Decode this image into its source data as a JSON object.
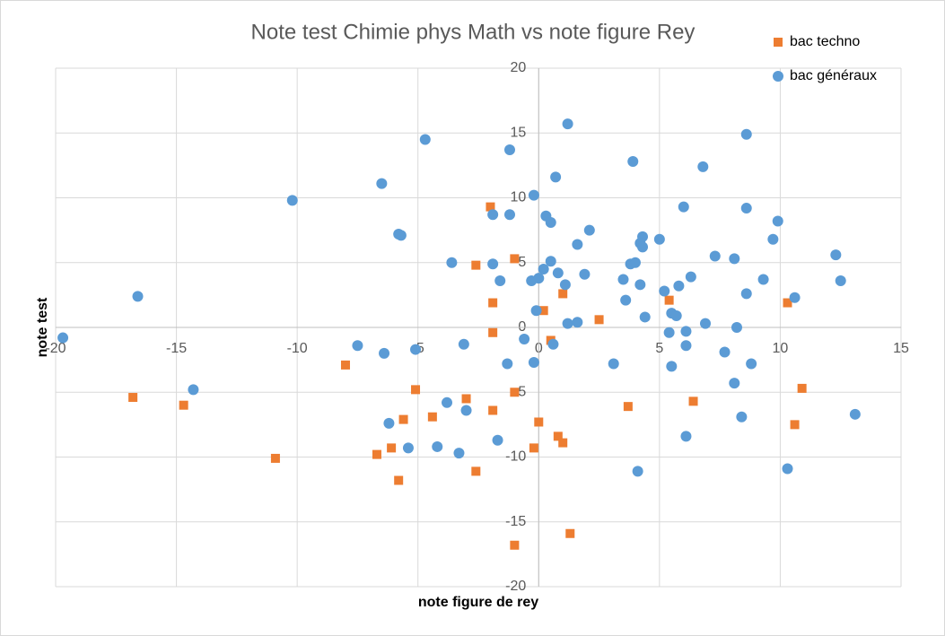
{
  "chart_data": {
    "type": "scatter",
    "title": "Note test Chimie phys Math vs note figure Rey",
    "x_label": "note figure de rey",
    "y_label": "note test",
    "xlim": [
      -20,
      15
    ],
    "xticks": [
      -20,
      -15,
      -10,
      -5,
      0,
      5,
      10,
      15
    ],
    "ylim": [
      -20,
      20
    ],
    "yticks": [
      -20,
      -15,
      -10,
      -5,
      0,
      5,
      10,
      15,
      20
    ],
    "grid": true,
    "legend": "top-right",
    "series": [
      {
        "name": "bac techno",
        "color": "#ed7d31",
        "marker": "square",
        "x": [
          -2.0,
          -1.0,
          -2.6,
          -1.9,
          0.2,
          1.0,
          2.5,
          5.4,
          10.3,
          0.5,
          -1.9,
          -8.0,
          -16.8,
          -14.7,
          -5.1,
          -3.0,
          -4.4,
          -5.6,
          -1.9,
          -1.0,
          0.0,
          3.7,
          6.4,
          10.9,
          10.6,
          0.8,
          1.0,
          -0.2,
          -6.1,
          -6.7,
          -10.9,
          -2.6,
          -5.8,
          -1.0,
          1.3
        ],
        "y": [
          9.3,
          5.3,
          4.8,
          1.9,
          1.3,
          2.6,
          0.6,
          2.1,
          1.9,
          -1.0,
          -0.4,
          -2.9,
          -5.4,
          -6.0,
          -4.8,
          -5.5,
          -6.9,
          -7.1,
          -6.4,
          -5.0,
          -7.3,
          -6.1,
          -5.7,
          -4.7,
          -7.5,
          -8.4,
          -8.9,
          -9.3,
          -9.3,
          -9.8,
          -10.1,
          -11.1,
          -11.8,
          -16.8,
          -15.9
        ]
      },
      {
        "name": "bac généraux",
        "color": "#5b9bd5",
        "marker": "circle",
        "x": [
          -19.7,
          -16.6,
          -14.3,
          -10.2,
          -6.5,
          -4.7,
          -5.8,
          -5.7,
          -7.5,
          -6.4,
          -5.1,
          -3.6,
          -3.1,
          -1.2,
          -1.9,
          -1.2,
          -1.9,
          -1.6,
          -0.2,
          1.2,
          0.7,
          0.3,
          0.5,
          2.1,
          1.6,
          0.5,
          0.2,
          0.0,
          -0.3,
          0.8,
          1.1,
          1.9,
          -0.1,
          1.2,
          1.6,
          -0.6,
          0.6,
          -1.3,
          -0.2,
          3.9,
          6.8,
          8.6,
          8.6,
          6.0,
          9.9,
          5.0,
          4.3,
          4.2,
          4.3,
          9.7,
          7.3,
          8.1,
          12.3,
          3.8,
          4.0,
          3.5,
          4.2,
          6.3,
          5.8,
          5.2,
          9.3,
          12.5,
          8.6,
          10.6,
          3.6,
          4.4,
          5.5,
          5.7,
          6.9,
          5.4,
          6.1,
          8.2,
          6.1,
          7.7,
          3.1,
          5.5,
          8.8,
          8.1,
          8.4,
          13.1,
          6.1,
          10.3,
          4.1,
          -3.8,
          -3.0,
          -6.2,
          -4.2,
          -5.4,
          -3.3,
          -1.7
        ],
        "y": [
          -0.8,
          2.4,
          -4.8,
          9.8,
          11.1,
          14.5,
          7.2,
          7.1,
          -1.4,
          -2.0,
          -1.7,
          5.0,
          -1.3,
          13.7,
          8.7,
          8.7,
          4.9,
          3.6,
          10.2,
          15.7,
          11.6,
          8.6,
          8.1,
          7.5,
          6.4,
          5.1,
          4.5,
          3.8,
          3.6,
          4.2,
          3.3,
          4.1,
          1.3,
          0.3,
          0.4,
          -0.9,
          -1.3,
          -2.8,
          -2.7,
          12.8,
          12.4,
          14.9,
          9.2,
          9.3,
          8.2,
          6.8,
          7.0,
          6.5,
          6.2,
          6.8,
          5.5,
          5.3,
          5.6,
          4.9,
          5.0,
          3.7,
          3.3,
          3.9,
          3.2,
          2.8,
          3.7,
          3.6,
          2.6,
          2.3,
          2.1,
          0.8,
          1.1,
          0.9,
          0.3,
          -0.4,
          -0.3,
          0.0,
          -1.4,
          -1.9,
          -2.8,
          -3.0,
          -2.8,
          -4.3,
          -6.9,
          -6.7,
          -8.4,
          -10.9,
          -11.1,
          -5.8,
          -6.4,
          -7.4,
          -9.2,
          -9.3,
          -9.7,
          -8.7
        ]
      }
    ]
  }
}
